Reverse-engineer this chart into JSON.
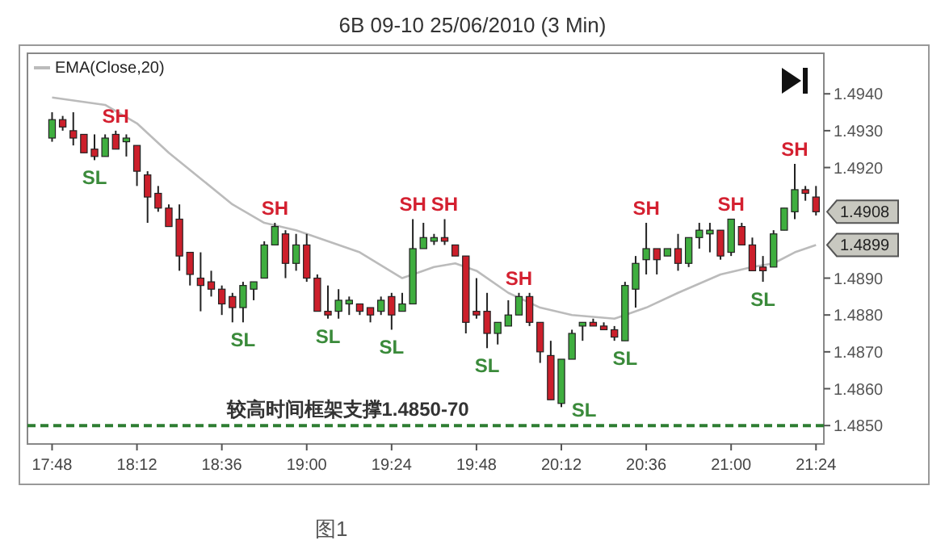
{
  "chart_data": {
    "type": "candlestick",
    "title": "6B 09-10  25/06/2010 (3 Min)",
    "x": [
      17.8,
      17.85,
      17.9,
      17.95,
      18.0,
      18.05,
      18.1,
      18.15,
      18.2,
      18.25,
      18.3,
      18.35,
      18.4,
      18.45,
      18.5,
      18.55,
      18.6,
      18.65,
      18.7,
      18.75,
      18.8,
      18.85,
      18.9,
      18.95,
      19.0,
      19.05,
      19.1,
      19.15,
      19.2,
      19.25,
      19.3,
      19.35,
      19.4,
      19.45,
      19.5,
      19.55,
      19.6,
      19.65,
      19.7,
      19.75,
      19.8,
      19.85,
      19.9,
      19.95,
      20.0,
      20.05,
      20.1,
      20.15,
      20.2,
      20.25,
      20.3,
      20.35,
      20.4,
      20.45,
      20.5,
      20.55,
      20.6,
      20.65,
      20.7,
      20.75,
      20.8,
      20.85,
      20.9,
      20.95,
      21.0,
      21.05,
      21.1,
      21.15,
      21.2,
      21.25,
      21.3,
      21.35,
      21.4
    ],
    "ohlc": [
      [
        1.4928,
        1.4935,
        1.4927,
        1.4933
      ],
      [
        1.4933,
        1.4934,
        1.493,
        1.4931
      ],
      [
        1.493,
        1.4935,
        1.4926,
        1.4928
      ],
      [
        1.4929,
        1.4929,
        1.4924,
        1.4924
      ],
      [
        1.4925,
        1.4929,
        1.4922,
        1.4923
      ],
      [
        1.4923,
        1.4929,
        1.4923,
        1.4928
      ],
      [
        1.4929,
        1.493,
        1.4925,
        1.4925
      ],
      [
        1.4927,
        1.4929,
        1.4923,
        1.4928
      ],
      [
        1.4926,
        1.4926,
        1.4915,
        1.4919
      ],
      [
        1.4918,
        1.4919,
        1.4905,
        1.4912
      ],
      [
        1.4913,
        1.4915,
        1.4908,
        1.4909
      ],
      [
        1.4909,
        1.491,
        1.4904,
        1.4904
      ],
      [
        1.4906,
        1.491,
        1.4892,
        1.4896
      ],
      [
        1.4897,
        1.4897,
        1.4888,
        1.4891
      ],
      [
        1.489,
        1.4897,
        1.4881,
        1.4888
      ],
      [
        1.4889,
        1.4892,
        1.4885,
        1.4887
      ],
      [
        1.4887,
        1.4888,
        1.488,
        1.4883
      ],
      [
        1.4885,
        1.4886,
        1.4878,
        1.4882
      ],
      [
        1.4882,
        1.4889,
        1.4878,
        1.4888
      ],
      [
        1.4887,
        1.4889,
        1.4884,
        1.4889
      ],
      [
        1.489,
        1.49,
        1.489,
        1.4899
      ],
      [
        1.4899,
        1.4905,
        1.4899,
        1.4904
      ],
      [
        1.4902,
        1.4903,
        1.489,
        1.4894
      ],
      [
        1.4894,
        1.4902,
        1.4892,
        1.4899
      ],
      [
        1.4899,
        1.4902,
        1.4889,
        1.489
      ],
      [
        1.489,
        1.4891,
        1.4881,
        1.4881
      ],
      [
        1.4881,
        1.4888,
        1.4879,
        1.488
      ],
      [
        1.4881,
        1.4887,
        1.4879,
        1.4884
      ],
      [
        1.4883,
        1.4885,
        1.488,
        1.4884
      ],
      [
        1.4883,
        1.4883,
        1.488,
        1.4881
      ],
      [
        1.4882,
        1.4882,
        1.4878,
        1.488
      ],
      [
        1.4881,
        1.4885,
        1.488,
        1.4884
      ],
      [
        1.4885,
        1.4886,
        1.4876,
        1.488
      ],
      [
        1.4881,
        1.4886,
        1.4881,
        1.4883
      ],
      [
        1.4883,
        1.4906,
        1.4883,
        1.4898
      ],
      [
        1.4898,
        1.4905,
        1.4898,
        1.4901
      ],
      [
        1.49,
        1.4902,
        1.4899,
        1.4901
      ],
      [
        1.4901,
        1.4906,
        1.4899,
        1.49
      ],
      [
        1.4899,
        1.4899,
        1.4896,
        1.4896
      ],
      [
        1.4896,
        1.4896,
        1.4875,
        1.4878
      ],
      [
        1.4881,
        1.489,
        1.4879,
        1.488
      ],
      [
        1.4881,
        1.4886,
        1.4871,
        1.4875
      ],
      [
        1.4875,
        1.4878,
        1.4872,
        1.4878
      ],
      [
        1.4877,
        1.4884,
        1.4877,
        1.488
      ],
      [
        1.488,
        1.4886,
        1.488,
        1.4885
      ],
      [
        1.4885,
        1.4886,
        1.4877,
        1.4878
      ],
      [
        1.4878,
        1.4878,
        1.4867,
        1.487
      ],
      [
        1.4869,
        1.4873,
        1.4857,
        1.4857
      ],
      [
        1.4856,
        1.4868,
        1.4855,
        1.4868
      ],
      [
        1.4868,
        1.4876,
        1.4868,
        1.4875
      ],
      [
        1.4877,
        1.4878,
        1.4873,
        1.4878
      ],
      [
        1.4878,
        1.4879,
        1.4877,
        1.4877
      ],
      [
        1.4877,
        1.4878,
        1.4876,
        1.4876
      ],
      [
        1.4876,
        1.4877,
        1.4873,
        1.4874
      ],
      [
        1.4873,
        1.4889,
        1.4873,
        1.4888
      ],
      [
        1.4887,
        1.4896,
        1.4882,
        1.4894
      ],
      [
        1.4895,
        1.4905,
        1.4891,
        1.4898
      ],
      [
        1.4898,
        1.4898,
        1.4891,
        1.4895
      ],
      [
        1.4896,
        1.4898,
        1.4896,
        1.4898
      ],
      [
        1.4898,
        1.4902,
        1.4892,
        1.4894
      ],
      [
        1.4894,
        1.4901,
        1.4893,
        1.4901
      ],
      [
        1.4901,
        1.4905,
        1.4898,
        1.4903
      ],
      [
        1.4902,
        1.4905,
        1.4897,
        1.4903
      ],
      [
        1.4903,
        1.4903,
        1.4895,
        1.4896
      ],
      [
        1.4897,
        1.4906,
        1.4896,
        1.4906
      ],
      [
        1.4904,
        1.4905,
        1.4899,
        1.4899
      ],
      [
        1.4899,
        1.4901,
        1.4892,
        1.4892
      ],
      [
        1.4893,
        1.4896,
        1.4889,
        1.4892
      ],
      [
        1.4893,
        1.4903,
        1.4893,
        1.4902
      ],
      [
        1.4903,
        1.4909,
        1.4903,
        1.4909
      ],
      [
        1.4908,
        1.4921,
        1.4906,
        1.4914
      ],
      [
        1.4914,
        1.4915,
        1.4911,
        1.4913
      ],
      [
        1.4912,
        1.4915,
        1.4907,
        1.4908
      ]
    ],
    "colors": [
      "#3fae3f",
      "#cc1f2b",
      "#cc1f2b",
      "#cc1f2b",
      "#cc1f2b",
      "#3fae3f",
      "#cc1f2b",
      "#3fae3f",
      "#cc1f2b",
      "#cc1f2b",
      "#cc1f2b",
      "#cc1f2b",
      "#cc1f2b",
      "#cc1f2b",
      "#cc1f2b",
      "#cc1f2b",
      "#cc1f2b",
      "#cc1f2b",
      "#3fae3f",
      "#3fae3f",
      "#3fae3f",
      "#3fae3f",
      "#cc1f2b",
      "#3fae3f",
      "#cc1f2b",
      "#cc1f2b",
      "#cc1f2b",
      "#3fae3f",
      "#3fae3f",
      "#cc1f2b",
      "#cc1f2b",
      "#3fae3f",
      "#cc1f2b",
      "#3fae3f",
      "#3fae3f",
      "#3fae3f",
      "#3fae3f",
      "#cc1f2b",
      "#cc1f2b",
      "#cc1f2b",
      "#cc1f2b",
      "#cc1f2b",
      "#3fae3f",
      "#3fae3f",
      "#3fae3f",
      "#cc1f2b",
      "#cc1f2b",
      "#cc1f2b",
      "#3fae3f",
      "#3fae3f",
      "#3fae3f",
      "#cc1f2b",
      "#cc1f2b",
      "#cc1f2b",
      "#3fae3f",
      "#3fae3f",
      "#3fae3f",
      "#cc1f2b",
      "#3fae3f",
      "#cc1f2b",
      "#3fae3f",
      "#3fae3f",
      "#3fae3f",
      "#cc1f2b",
      "#3fae3f",
      "#cc1f2b",
      "#cc1f2b",
      "#cc1f2b",
      "#3fae3f",
      "#3fae3f",
      "#3fae3f",
      "#cc1f2b",
      "#cc1f2b"
    ],
    "series": [
      {
        "type": "line",
        "name": "EMA(Close,20)",
        "color": "#bbbbbb",
        "x": [
          17.8,
          18.05,
          18.2,
          18.35,
          18.5,
          18.65,
          18.8,
          18.95,
          19.0,
          19.25,
          19.45,
          19.6,
          19.7,
          19.8,
          19.95,
          20.1,
          20.25,
          20.45,
          20.5,
          20.6,
          20.75,
          20.95,
          21.1,
          21.2,
          21.3,
          21.4
        ],
        "values": [
          1.4939,
          1.4937,
          1.4932,
          1.4924,
          1.4917,
          1.491,
          1.4905,
          1.4903,
          1.4902,
          1.4897,
          1.489,
          1.4893,
          1.4894,
          1.4892,
          1.4886,
          1.4882,
          1.488,
          1.4879,
          1.488,
          1.4882,
          1.4886,
          1.4891,
          1.4893,
          1.4894,
          1.4897,
          1.4899
        ]
      }
    ],
    "legend": "top left",
    "xlim": [
      17.684,
      21.437
    ],
    "xticks": [
      {
        "value": 17.8,
        "label": "17:48"
      },
      {
        "value": 18.2,
        "label": "18:12"
      },
      {
        "value": 18.6,
        "label": "18:36"
      },
      {
        "value": 19.0,
        "label": "19:00"
      },
      {
        "value": 19.4,
        "label": "19:24"
      },
      {
        "value": 19.8,
        "label": "19:48"
      },
      {
        "value": 20.2,
        "label": "20:12"
      },
      {
        "value": 20.6,
        "label": "20:36"
      },
      {
        "value": 21.0,
        "label": "21:00"
      },
      {
        "value": 21.4,
        "label": "21:24"
      }
    ],
    "ylim": [
      1.4845,
      1.4951
    ],
    "yticks": [
      {
        "value": 1.485,
        "label": "1.4850"
      },
      {
        "value": 1.486,
        "label": "1.4860"
      },
      {
        "value": 1.487,
        "label": "1.4870"
      },
      {
        "value": 1.488,
        "label": "1.4880"
      },
      {
        "value": 1.489,
        "label": "1.4890"
      },
      {
        "value": 1.492,
        "label": "1.4920"
      },
      {
        "value": 1.493,
        "label": "1.4930"
      },
      {
        "value": 1.494,
        "label": "1.4940"
      }
    ],
    "ref_lines": [
      {
        "axis": "y",
        "value": 1.485,
        "label": "较高时间框架支撑1.4850-70",
        "color": "#2e7d32",
        "line_style": "dashed"
      }
    ],
    "annotations": [
      {
        "text": "SH",
        "x": 18.1,
        "y": 1.493
      },
      {
        "text": "SL",
        "x": 18.0,
        "y": 1.4922
      },
      {
        "text": "SH",
        "x": 18.85,
        "y": 1.4905
      },
      {
        "text": "SL",
        "x": 18.7,
        "y": 1.4878
      },
      {
        "text": "SL",
        "x": 19.1,
        "y": 1.4879
      },
      {
        "text": "SL",
        "x": 19.4,
        "y": 1.4876
      },
      {
        "text": "SH",
        "x": 19.5,
        "y": 1.4906
      },
      {
        "text": "SH",
        "x": 19.65,
        "y": 1.4906
      },
      {
        "text": "SL",
        "x": 19.85,
        "y": 1.4871
      },
      {
        "text": "SH",
        "x": 20.0,
        "y": 1.4886
      },
      {
        "text": "SL",
        "x": 20.2,
        "y": 1.4855
      },
      {
        "text": "SL",
        "x": 20.5,
        "y": 1.4873
      },
      {
        "text": "SH",
        "x": 20.6,
        "y": 1.4905
      },
      {
        "text": "SH",
        "x": 21.0,
        "y": 1.4906
      },
      {
        "text": "SL",
        "x": 21.15,
        "y": 1.4889
      },
      {
        "text": "SH",
        "x": 21.3,
        "y": 1.4921
      },
      {
        "text": "1.4908",
        "x": 21.4,
        "y": 1.4908
      },
      {
        "text": "1.4899",
        "x": 21.4,
        "y": 1.4899
      },
      "图1"
    ],
    "grid": false,
    "tick_labels": true
  }
}
